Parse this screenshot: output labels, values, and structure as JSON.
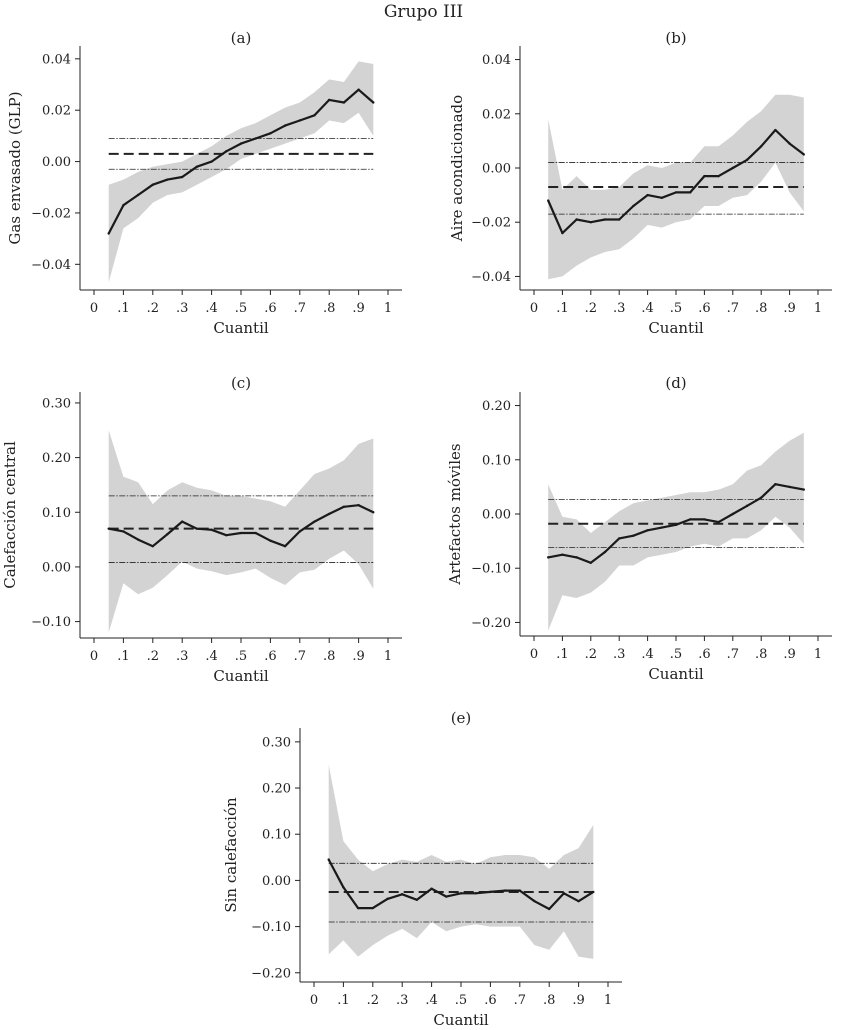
{
  "figure_title": "Grupo III",
  "chart_data": [
    {
      "type": "line",
      "panel": "(a)",
      "xlabel": "Cuantil",
      "ylabel": "Gas envasado (GLP)",
      "xlim": [
        0,
        1
      ],
      "ylim": [
        -0.05,
        0.045
      ],
      "x_ticks": [
        0,
        0.1,
        0.2,
        0.3,
        0.4,
        0.5,
        0.6,
        0.7,
        0.8,
        0.9,
        1
      ],
      "x_tick_labels": [
        "0",
        ".1",
        ".2",
        ".3",
        ".4",
        ".5",
        ".6",
        ".7",
        ".8",
        ".9",
        "1"
      ],
      "y_ticks": [
        -0.04,
        -0.02,
        0.0,
        0.02,
        0.04
      ],
      "y_tick_labels": [
        "−0.04",
        "−0.02",
        "0.00",
        "0.02",
        "0.04"
      ],
      "x": [
        0.05,
        0.1,
        0.15,
        0.2,
        0.25,
        0.3,
        0.35,
        0.4,
        0.45,
        0.5,
        0.55,
        0.6,
        0.65,
        0.7,
        0.75,
        0.8,
        0.85,
        0.9,
        0.95
      ],
      "estimate": [
        -0.028,
        -0.017,
        -0.013,
        -0.009,
        -0.007,
        -0.006,
        -0.002,
        0.0,
        0.004,
        0.007,
        0.009,
        0.011,
        0.014,
        0.016,
        0.018,
        0.024,
        0.023,
        0.028,
        0.023
      ],
      "ci_upper": [
        -0.009,
        -0.007,
        -0.004,
        -0.002,
        -0.001,
        0.0,
        0.003,
        0.006,
        0.01,
        0.013,
        0.015,
        0.018,
        0.021,
        0.023,
        0.027,
        0.032,
        0.031,
        0.039,
        0.038
      ],
      "ci_lower": [
        -0.047,
        -0.026,
        -0.022,
        -0.016,
        -0.013,
        -0.012,
        -0.009,
        -0.006,
        -0.003,
        0.001,
        0.003,
        0.005,
        0.007,
        0.009,
        0.011,
        0.016,
        0.015,
        0.019,
        0.01
      ],
      "ols": 0.003,
      "ols_ci_upper": 0.009,
      "ols_ci_lower": -0.003
    },
    {
      "type": "line",
      "panel": "(b)",
      "xlabel": "Cuantil",
      "ylabel": "Aire acondicionado",
      "xlim": [
        0,
        1
      ],
      "ylim": [
        -0.045,
        0.045
      ],
      "x_ticks": [
        0,
        0.1,
        0.2,
        0.3,
        0.4,
        0.5,
        0.6,
        0.7,
        0.8,
        0.9,
        1
      ],
      "x_tick_labels": [
        "0",
        ".1",
        ".2",
        ".3",
        ".4",
        ".5",
        ".6",
        ".7",
        ".8",
        ".9",
        "1"
      ],
      "y_ticks": [
        -0.04,
        -0.02,
        0.0,
        0.02,
        0.04
      ],
      "y_tick_labels": [
        "−0.04",
        "−0.02",
        "0.00",
        "0.02",
        "0.04"
      ],
      "x": [
        0.05,
        0.1,
        0.15,
        0.2,
        0.25,
        0.3,
        0.35,
        0.4,
        0.45,
        0.5,
        0.55,
        0.6,
        0.65,
        0.7,
        0.75,
        0.8,
        0.85,
        0.9,
        0.95
      ],
      "estimate": [
        -0.012,
        -0.024,
        -0.019,
        -0.02,
        -0.019,
        -0.019,
        -0.014,
        -0.01,
        -0.011,
        -0.009,
        -0.009,
        -0.003,
        -0.003,
        0.0,
        0.003,
        0.008,
        0.014,
        0.009,
        0.005
      ],
      "ci_upper": [
        0.018,
        -0.008,
        -0.003,
        -0.008,
        -0.008,
        -0.007,
        -0.002,
        0.001,
        0.0,
        0.002,
        0.002,
        0.008,
        0.008,
        0.012,
        0.017,
        0.021,
        0.027,
        0.027,
        0.026
      ],
      "ci_lower": [
        -0.041,
        -0.04,
        -0.036,
        -0.033,
        -0.031,
        -0.03,
        -0.026,
        -0.021,
        -0.022,
        -0.02,
        -0.019,
        -0.014,
        -0.014,
        -0.011,
        -0.01,
        -0.005,
        0.002,
        -0.009,
        -0.016
      ],
      "ols": -0.007,
      "ols_ci_upper": 0.002,
      "ols_ci_lower": -0.017
    },
    {
      "type": "line",
      "panel": "(c)",
      "xlabel": "Cuantil",
      "ylabel": "Calefacción central",
      "xlim": [
        0,
        1
      ],
      "ylim": [
        -0.13,
        0.32
      ],
      "x_ticks": [
        0,
        0.1,
        0.2,
        0.3,
        0.4,
        0.5,
        0.6,
        0.7,
        0.8,
        0.9,
        1
      ],
      "x_tick_labels": [
        "0",
        ".1",
        ".2",
        ".3",
        ".4",
        ".5",
        ".6",
        ".7",
        ".8",
        ".9",
        "1"
      ],
      "y_ticks": [
        -0.1,
        0.0,
        0.1,
        0.2,
        0.3
      ],
      "y_tick_labels": [
        "−0.10",
        "0.00",
        "0.10",
        "0.20",
        "0.30"
      ],
      "x": [
        0.05,
        0.1,
        0.15,
        0.2,
        0.25,
        0.3,
        0.35,
        0.4,
        0.45,
        0.5,
        0.55,
        0.6,
        0.65,
        0.7,
        0.75,
        0.8,
        0.85,
        0.9,
        0.95
      ],
      "estimate": [
        0.07,
        0.065,
        0.05,
        0.038,
        0.06,
        0.083,
        0.07,
        0.068,
        0.058,
        0.062,
        0.062,
        0.048,
        0.038,
        0.065,
        0.083,
        0.097,
        0.11,
        0.113,
        0.1
      ],
      "ci_upper": [
        0.25,
        0.165,
        0.155,
        0.115,
        0.14,
        0.155,
        0.145,
        0.14,
        0.13,
        0.13,
        0.125,
        0.12,
        0.11,
        0.14,
        0.17,
        0.18,
        0.195,
        0.225,
        0.235
      ],
      "ci_lower": [
        -0.12,
        -0.03,
        -0.05,
        -0.038,
        -0.015,
        0.01,
        -0.003,
        -0.008,
        -0.015,
        -0.01,
        -0.003,
        -0.02,
        -0.033,
        -0.01,
        -0.005,
        0.015,
        0.03,
        0.005,
        -0.04
      ],
      "ols": 0.07,
      "ols_ci_upper": 0.13,
      "ols_ci_lower": 0.008
    },
    {
      "type": "line",
      "panel": "(d)",
      "xlabel": "Cuantil",
      "ylabel": "Artefactos móviles",
      "xlim": [
        0,
        1
      ],
      "ylim": [
        -0.225,
        0.225
      ],
      "x_ticks": [
        0,
        0.1,
        0.2,
        0.3,
        0.4,
        0.5,
        0.6,
        0.7,
        0.8,
        0.9,
        1
      ],
      "x_tick_labels": [
        "0",
        ".1",
        ".2",
        ".3",
        ".4",
        ".5",
        ".6",
        ".7",
        ".8",
        ".9",
        "1"
      ],
      "y_ticks": [
        -0.2,
        -0.1,
        0.0,
        0.1,
        0.2
      ],
      "y_tick_labels": [
        "−0.20",
        "−0.10",
        "0.00",
        "0.10",
        "0.20"
      ],
      "x": [
        0.05,
        0.1,
        0.15,
        0.2,
        0.25,
        0.3,
        0.35,
        0.4,
        0.45,
        0.5,
        0.55,
        0.6,
        0.65,
        0.7,
        0.75,
        0.8,
        0.85,
        0.9,
        0.95
      ],
      "estimate": [
        -0.08,
        -0.075,
        -0.08,
        -0.09,
        -0.07,
        -0.045,
        -0.04,
        -0.03,
        -0.025,
        -0.02,
        -0.01,
        -0.01,
        -0.015,
        0.0,
        0.015,
        0.03,
        0.055,
        0.05,
        0.045
      ],
      "ci_upper": [
        0.055,
        -0.005,
        -0.01,
        -0.035,
        -0.015,
        0.005,
        0.02,
        0.025,
        0.03,
        0.035,
        0.04,
        0.04,
        0.045,
        0.055,
        0.08,
        0.09,
        0.115,
        0.135,
        0.15
      ],
      "ci_lower": [
        -0.215,
        -0.15,
        -0.155,
        -0.145,
        -0.125,
        -0.095,
        -0.095,
        -0.08,
        -0.075,
        -0.07,
        -0.06,
        -0.055,
        -0.06,
        -0.045,
        -0.045,
        -0.03,
        -0.005,
        -0.025,
        -0.055
      ],
      "ols": -0.018,
      "ols_ci_upper": 0.027,
      "ols_ci_lower": -0.062
    },
    {
      "type": "line",
      "panel": "(e)",
      "xlabel": "Cuantil",
      "ylabel": "Sin calefacción",
      "xlim": [
        0,
        1
      ],
      "ylim": [
        -0.22,
        0.33
      ],
      "x_ticks": [
        0,
        0.1,
        0.2,
        0.3,
        0.4,
        0.5,
        0.6,
        0.7,
        0.8,
        0.9,
        1
      ],
      "x_tick_labels": [
        "0",
        ".1",
        ".2",
        ".3",
        ".4",
        ".5",
        ".6",
        ".7",
        ".8",
        ".9",
        "1"
      ],
      "y_ticks": [
        -0.2,
        -0.1,
        0.0,
        0.1,
        0.2,
        0.3
      ],
      "y_tick_labels": [
        "−0.20",
        "−0.10",
        "0.00",
        "0.10",
        "0.20",
        "0.30"
      ],
      "x": [
        0.05,
        0.1,
        0.15,
        0.2,
        0.25,
        0.3,
        0.35,
        0.4,
        0.45,
        0.5,
        0.55,
        0.6,
        0.65,
        0.7,
        0.75,
        0.8,
        0.85,
        0.9,
        0.95
      ],
      "estimate": [
        0.045,
        -0.015,
        -0.06,
        -0.06,
        -0.04,
        -0.03,
        -0.042,
        -0.018,
        -0.035,
        -0.028,
        -0.028,
        -0.025,
        -0.022,
        -0.022,
        -0.045,
        -0.062,
        -0.028,
        -0.045,
        -0.025
      ],
      "ci_upper": [
        0.25,
        0.085,
        0.045,
        0.02,
        0.035,
        0.045,
        0.04,
        0.055,
        0.04,
        0.045,
        0.035,
        0.05,
        0.055,
        0.055,
        0.05,
        0.025,
        0.055,
        0.07,
        0.12
      ],
      "ci_lower": [
        -0.16,
        -0.13,
        -0.165,
        -0.14,
        -0.12,
        -0.105,
        -0.125,
        -0.09,
        -0.11,
        -0.1,
        -0.095,
        -0.1,
        -0.1,
        -0.1,
        -0.14,
        -0.15,
        -0.11,
        -0.165,
        -0.17
      ],
      "ols": -0.025,
      "ols_ci_upper": 0.037,
      "ols_ci_lower": -0.09
    }
  ]
}
